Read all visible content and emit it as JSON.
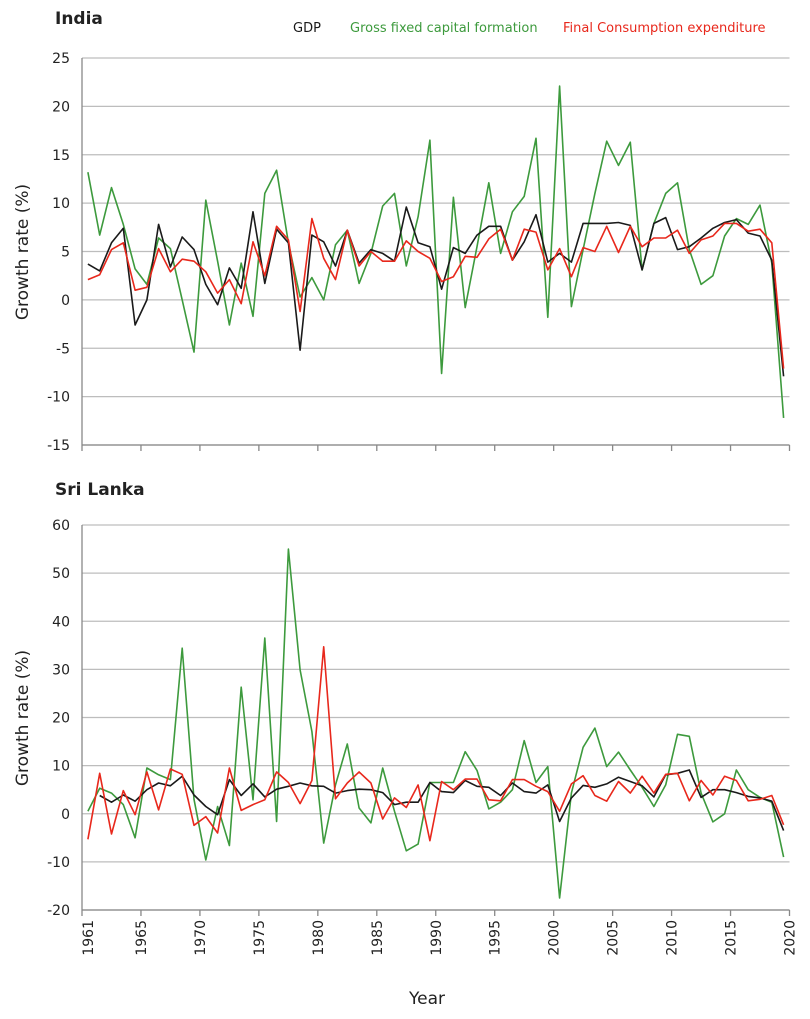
{
  "chart_data": [
    {
      "type": "line",
      "title": "India",
      "xlabel": "",
      "ylabel": "Growth rate (%)",
      "ylim": [
        -15,
        25
      ],
      "yticks": [
        "25",
        "20",
        "15",
        "10",
        "5",
        "0",
        "-5",
        "-10",
        "-15"
      ],
      "grid": true,
      "legend_position": "top",
      "x_start": 1961,
      "series": [
        {
          "name": "GDP",
          "color": "#1a1a1a",
          "values": [
            3.7,
            3,
            5.9,
            7.4,
            -2.6,
            0,
            7.8,
            3.4,
            6.5,
            5.2,
            1.6,
            -0.5,
            3.3,
            1.2,
            9.1,
            1.7,
            7.3,
            5.9,
            -5.2,
            6.7,
            6,
            3.5,
            7.2,
            3.8,
            5.2,
            4.8,
            4,
            9.6,
            5.9,
            5.5,
            1.1,
            5.4,
            4.8,
            6.7,
            7.6,
            7.6,
            4.1,
            6,
            8.8,
            3.9,
            4.8,
            3.9,
            7.9,
            7.9,
            7.9,
            8,
            7.7,
            3.1,
            7.9,
            8.5,
            5.2,
            5.5,
            6.4,
            7.4,
            8,
            8.3,
            6.9,
            6.6,
            4.1,
            -7.9
          ]
        },
        {
          "name": "Gross fixed capital formation",
          "color": "#3d9a3d",
          "values": [
            13.2,
            6.7,
            11.6,
            7.8,
            3.2,
            1.6,
            6.4,
            5.3,
            0,
            -5.4,
            10.3,
            4,
            -2.6,
            3.8,
            -1.7,
            11,
            13.4,
            5.9,
            0.3,
            2.3,
            0,
            5.7,
            7.2,
            1.7,
            4.8,
            9.7,
            11,
            3.5,
            8.6,
            16.5,
            -7.6,
            10.6,
            -0.8,
            5.5,
            12.1,
            4.8,
            9.1,
            10.7,
            16.7,
            -1.8,
            22.1,
            -0.7,
            5.2,
            11,
            16.4,
            13.9,
            16.3,
            3.1,
            7.9,
            11,
            12.1,
            5.2,
            1.6,
            2.5,
            6.6,
            8.4,
            7.8,
            9.8,
            3.8,
            -12.2
          ]
        },
        {
          "name": "Final Consumption expenditure",
          "color": "#e8281c",
          "values": [
            2.1,
            2.6,
            5.2,
            5.9,
            1,
            1.3,
            5.3,
            2.9,
            4.2,
            4,
            2.9,
            0.7,
            2.1,
            -0.4,
            6,
            2.5,
            7.6,
            6.2,
            -1.2,
            8.4,
            4.3,
            2.1,
            7.2,
            3.5,
            5,
            4,
            4,
            6.1,
            5,
            4.3,
            1.9,
            2.4,
            4.5,
            4.4,
            6.3,
            7.3,
            4.1,
            7.3,
            7,
            3.1,
            5.3,
            2.4,
            5.4,
            5,
            7.6,
            4.9,
            7.6,
            5.5,
            6.4,
            6.4,
            7.2,
            4.8,
            6.2,
            6.6,
            7.9,
            7.9,
            7.1,
            7.3,
            5.9,
            -7.1
          ]
        }
      ]
    },
    {
      "type": "line",
      "title": "Sri Lanka",
      "xlabel": "Year",
      "ylabel": "Growth rate (%)",
      "ylim": [
        -20,
        60
      ],
      "yticks": [
        "60",
        "50",
        "40",
        "30",
        "20",
        "10",
        "0",
        "-10",
        "-20"
      ],
      "xticks": [
        "1961",
        "1965",
        "1970",
        "1975",
        "1980",
        "1985",
        "1990",
        "1995",
        "2000",
        "2005",
        "2010",
        "2015",
        "2020"
      ],
      "grid": true,
      "x_start": 1961,
      "series": [
        {
          "name": "GDP",
          "color": "#1a1a1a",
          "values": [
            null,
            3.8,
            2.4,
            3.9,
            2.6,
            5,
            6.4,
            5.8,
            7.8,
            3.9,
            1.5,
            -0.2,
            7.1,
            3.8,
            6.2,
            3.5,
            5.1,
            5.7,
            6.4,
            5.8,
            5.7,
            4.3,
            4.8,
            5.1,
            5,
            4.4,
            1.9,
            2.4,
            2.4,
            6.5,
            4.6,
            4.4,
            6.9,
            5.7,
            5.5,
            3.8,
            6.4,
            4.6,
            4.3,
            6,
            -1.6,
            3.3,
            5.9,
            5.5,
            6.2,
            7.6,
            6.7,
            5.8,
            3.5,
            8.1,
            8.4,
            9.1,
            3.4,
            5,
            5,
            4.4,
            3.6,
            3.3,
            2.6,
            -3.5
          ]
        },
        {
          "name": "Gross fixed capital formation",
          "color": "#3d9a3d",
          "values": [
            0.5,
            5.3,
            4.3,
            1.9,
            -5,
            9.5,
            8.1,
            7.1,
            34.4,
            3,
            -9.6,
            1.5,
            -6.6,
            26.3,
            2.9,
            36.5,
            -1.6,
            55,
            29.9,
            17.1,
            -6.1,
            6,
            14.5,
            1.2,
            -1.9,
            9.5,
            0.5,
            -7.7,
            -6.3,
            6.5,
            6.5,
            6.5,
            12.9,
            9,
            1,
            2.4,
            5,
            15.2,
            6.5,
            9.8,
            -17.5,
            4.3,
            13.8,
            17.8,
            9.8,
            12.8,
            9.1,
            5.5,
            1.5,
            6,
            16.5,
            16.1,
            4.3,
            -1.7,
            0,
            9.1,
            5,
            3.4,
            2.4,
            -9
          ]
        },
        {
          "name": "Final Consumption expenditure",
          "color": "#e8281c",
          "values": [
            -5.3,
            8.4,
            -4.2,
            4.8,
            -0.2,
            8.7,
            0.8,
            9.3,
            8.2,
            -2.4,
            -0.6,
            -4,
            9.5,
            0.7,
            1.9,
            2.9,
            8.7,
            6.5,
            2.1,
            6.9,
            34.7,
            3.1,
            6.4,
            8.7,
            6.4,
            -1.1,
            3.3,
            1.3,
            6,
            -5.6,
            6.7,
            5,
            7.2,
            7.2,
            2.9,
            2.7,
            7.1,
            7.1,
            5.7,
            4.6,
            0.5,
            6.2,
            7.9,
            3.8,
            2.6,
            6.7,
            4.3,
            7.8,
            4.3,
            8.2,
            8.4,
            2.7,
            6.9,
            3.9,
            7.8,
            6.9,
            2.7,
            3,
            3.8,
            -2.3
          ]
        }
      ]
    }
  ]
}
